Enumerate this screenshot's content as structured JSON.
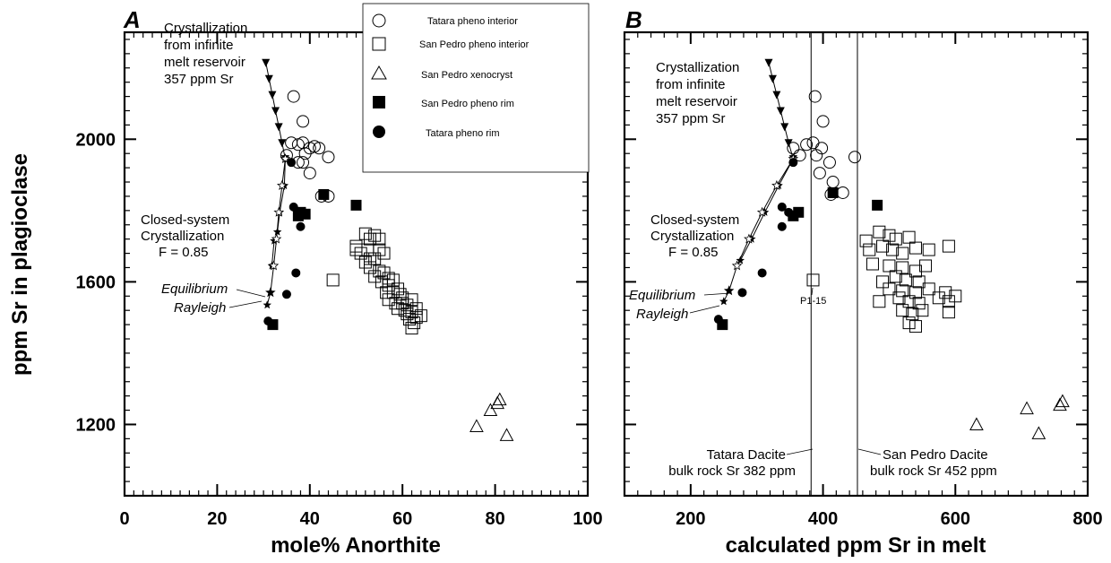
{
  "chart_data": [
    {
      "type": "scatter",
      "panel_label": "A",
      "xlabel": "mole% Anorthite",
      "ylabel": "ppm Sr  in plagioclase",
      "xlim": [
        0,
        100
      ],
      "ylim": [
        1000,
        2300
      ],
      "x_ticks": [
        0,
        20,
        40,
        60,
        80,
        100
      ],
      "y_ticks": [
        1200,
        1600,
        2000
      ],
      "grid": false,
      "legend": {
        "placement": "top-right",
        "entries": [
          {
            "label": "Tatara pheno interior",
            "marker": "open-circle"
          },
          {
            "label": "San Pedro pheno interior",
            "marker": "open-square"
          },
          {
            "label": "San Pedro xenocryst",
            "marker": "open-triangle"
          },
          {
            "label": "San Pedro pheno rim",
            "marker": "filled-square"
          },
          {
            "label": "Tatara pheno rim",
            "marker": "filled-circle"
          }
        ]
      },
      "series": [
        {
          "marker": "open-circle",
          "points": [
            [
              36.5,
              2120
            ],
            [
              38.5,
              2050
            ],
            [
              36,
              1990
            ],
            [
              37.5,
              1985
            ],
            [
              38.5,
              1990
            ],
            [
              40,
              1975
            ],
            [
              39,
              1960
            ],
            [
              41,
              1980
            ],
            [
              42,
              1975
            ],
            [
              35,
              1955
            ],
            [
              37.5,
              1935
            ],
            [
              44,
              1950
            ],
            [
              40,
              1905
            ],
            [
              38.5,
              1935
            ],
            [
              42.5,
              1840
            ],
            [
              44,
              1840
            ]
          ]
        },
        {
          "marker": "open-square",
          "points": [
            [
              45,
              1605
            ],
            [
              50,
              1700
            ],
            [
              52,
              1735
            ],
            [
              53,
              1720
            ],
            [
              54,
              1730
            ],
            [
              55,
              1720
            ],
            [
              50,
              1690
            ],
            [
              51,
              1680
            ],
            [
              52.5,
              1690
            ],
            [
              53,
              1665
            ],
            [
              54,
              1665
            ],
            [
              55,
              1690
            ],
            [
              56,
              1680
            ],
            [
              52,
              1655
            ],
            [
              53,
              1640
            ],
            [
              55,
              1630
            ],
            [
              56,
              1625
            ],
            [
              57,
              1610
            ],
            [
              54,
              1615
            ],
            [
              55.5,
              1600
            ],
            [
              57,
              1590
            ],
            [
              58,
              1605
            ],
            [
              59,
              1580
            ],
            [
              56.5,
              1570
            ],
            [
              58,
              1570
            ],
            [
              59.5,
              1565
            ],
            [
              60,
              1555
            ],
            [
              57,
              1550
            ],
            [
              58.5,
              1540
            ],
            [
              60,
              1540
            ],
            [
              61,
              1535
            ],
            [
              62,
              1550
            ],
            [
              59,
              1525
            ],
            [
              60.5,
              1520
            ],
            [
              61,
              1510
            ],
            [
              62,
              1515
            ],
            [
              63,
              1525
            ],
            [
              64,
              1505
            ],
            [
              61.5,
              1495
            ],
            [
              62.5,
              1485
            ],
            [
              63,
              1500
            ],
            [
              62,
              1470
            ]
          ]
        },
        {
          "marker": "open-triangle",
          "points": [
            [
              76,
              1195
            ],
            [
              79,
              1240
            ],
            [
              80.5,
              1260
            ],
            [
              81,
              1270
            ],
            [
              82.5,
              1170
            ]
          ]
        },
        {
          "marker": "filled-square",
          "points": [
            [
              43,
              1845
            ],
            [
              50,
              1815
            ],
            [
              39,
              1790
            ],
            [
              38,
              1795
            ],
            [
              37.5,
              1785
            ],
            [
              32,
              1480
            ]
          ]
        },
        {
          "marker": "filled-circle",
          "points": [
            [
              36,
              1935
            ],
            [
              36.5,
              1810
            ],
            [
              37.5,
              1790
            ],
            [
              38,
              1755
            ],
            [
              37,
              1625
            ],
            [
              35,
              1565
            ],
            [
              31,
              1490
            ]
          ]
        }
      ],
      "curves": [
        {
          "label": "Crystallization from infinite melt reservoir 357 ppm Sr",
          "marker": "filled-inverted-triangle",
          "points": [
            [
              30.5,
              2215
            ],
            [
              31.2,
              2170
            ],
            [
              31.9,
              2125
            ],
            [
              32.6,
              2080
            ],
            [
              33.3,
              2035
            ],
            [
              34,
              1990
            ],
            [
              34.7,
              1945
            ]
          ]
        },
        {
          "label": "Closed-system Crystallization F = 0.85",
          "marker": "filled-star",
          "points": [
            [
              34.7,
              1945
            ],
            [
              34.5,
              1870
            ],
            [
              33.5,
              1795
            ],
            [
              33,
              1740
            ],
            [
              32.3,
              1715
            ],
            [
              31.8,
              1645
            ]
          ]
        },
        {
          "label": "Equilibrium",
          "marker": "open-star",
          "points": [
            [
              34.7,
              1945
            ],
            [
              34,
              1870
            ],
            [
              33.3,
              1795
            ],
            [
              32.8,
              1720
            ],
            [
              32.2,
              1645
            ],
            [
              31.5,
              1570
            ]
          ]
        },
        {
          "label": "Rayleigh",
          "marker": "filled-star",
          "points": [
            [
              31.5,
              1570
            ],
            [
              30.8,
              1535
            ]
          ]
        }
      ],
      "annotations": [
        "Crystallization",
        "from infinite",
        "melt reservoir",
        "357 ppm Sr",
        "Closed-system",
        "Crystallization",
        "F = 0.85",
        "Equilibrium",
        "Rayleigh"
      ]
    },
    {
      "type": "scatter",
      "panel_label": "B",
      "xlabel": "calculated ppm Sr in melt",
      "ylabel": "",
      "xlim": [
        100,
        800
      ],
      "ylim": [
        1000,
        2300
      ],
      "x_ticks": [
        200,
        400,
        600,
        800
      ],
      "y_ticks": [
        1200,
        1600,
        2000
      ],
      "grid": false,
      "vertical_lines": [
        {
          "x": 382,
          "label_lines": [
            "Tatara Dacite",
            "bulk rock Sr 382 ppm"
          ]
        },
        {
          "x": 452,
          "label_lines": [
            "San Pedro Dacite",
            "bulk rock Sr 452 ppm"
          ]
        }
      ],
      "series": [
        {
          "marker": "open-circle",
          "points": [
            [
              388,
              2120
            ],
            [
              400,
              2050
            ],
            [
              355,
              1975
            ],
            [
              375,
              1985
            ],
            [
              385,
              1990
            ],
            [
              398,
              1975
            ],
            [
              365,
              1955
            ],
            [
              390,
              1955
            ],
            [
              410,
              1935
            ],
            [
              448,
              1950
            ],
            [
              395,
              1905
            ],
            [
              415,
              1880
            ],
            [
              430,
              1850
            ],
            [
              412,
              1845
            ]
          ]
        },
        {
          "marker": "open-square",
          "points": [
            [
              385,
              1605
            ],
            [
              465,
              1715
            ],
            [
              470,
              1690
            ],
            [
              485,
              1740
            ],
            [
              500,
              1730
            ],
            [
              510,
              1720
            ],
            [
              530,
              1725
            ],
            [
              490,
              1700
            ],
            [
              505,
              1690
            ],
            [
              520,
              1680
            ],
            [
              540,
              1695
            ],
            [
              560,
              1690
            ],
            [
              590,
              1700
            ],
            [
              475,
              1650
            ],
            [
              500,
              1645
            ],
            [
              520,
              1640
            ],
            [
              540,
              1630
            ],
            [
              555,
              1645
            ],
            [
              490,
              1600
            ],
            [
              510,
              1615
            ],
            [
              525,
              1605
            ],
            [
              545,
              1600
            ],
            [
              500,
              1580
            ],
            [
              520,
              1575
            ],
            [
              540,
              1570
            ],
            [
              560,
              1580
            ],
            [
              585,
              1570
            ],
            [
              600,
              1560
            ],
            [
              485,
              1545
            ],
            [
              515,
              1555
            ],
            [
              530,
              1545
            ],
            [
              545,
              1540
            ],
            [
              575,
              1555
            ],
            [
              590,
              1545
            ],
            [
              520,
              1520
            ],
            [
              535,
              1510
            ],
            [
              550,
              1520
            ],
            [
              590,
              1515
            ],
            [
              530,
              1485
            ],
            [
              540,
              1475
            ]
          ]
        },
        {
          "marker": "open-triangle",
          "points": [
            [
              632,
              1200
            ],
            [
              708,
              1245
            ],
            [
              726,
              1175
            ],
            [
              758,
              1255
            ],
            [
              762,
              1265
            ]
          ]
        },
        {
          "marker": "filled-square",
          "points": [
            [
              415,
              1850
            ],
            [
              482,
              1815
            ],
            [
              363,
              1795
            ],
            [
              355,
              1785
            ],
            [
              248,
              1480
            ]
          ]
        },
        {
          "marker": "filled-circle",
          "points": [
            [
              355,
              1935
            ],
            [
              338,
              1810
            ],
            [
              348,
              1795
            ],
            [
              338,
              1755
            ],
            [
              308,
              1625
            ],
            [
              278,
              1570
            ],
            [
              242,
              1495
            ]
          ]
        }
      ],
      "curves": [
        {
          "label": "Crystallization from infinite melt reservoir 357 ppm Sr",
          "marker": "filled-inverted-triangle",
          "points": [
            [
              318,
              2215
            ],
            [
              324,
              2170
            ],
            [
              330,
              2125
            ],
            [
              336,
              2080
            ],
            [
              342,
              2035
            ],
            [
              348,
              1990
            ],
            [
              355,
              1945
            ]
          ]
        },
        {
          "label": "Closed-system Crystallization F = 0.85",
          "marker": "filled-star",
          "points": [
            [
              355,
              1945
            ],
            [
              333,
              1870
            ],
            [
              312,
              1795
            ],
            [
              292,
              1720
            ],
            [
              275,
              1660
            ]
          ]
        },
        {
          "label": "Equilibrium",
          "marker": "open-star",
          "points": [
            [
              355,
              1945
            ],
            [
              330,
              1870
            ],
            [
              308,
              1795
            ],
            [
              288,
              1720
            ],
            [
              270,
              1645
            ],
            [
              258,
              1575
            ]
          ]
        },
        {
          "label": "Rayleigh",
          "marker": "filled-star",
          "points": [
            [
              258,
              1575
            ],
            [
              250,
              1545
            ]
          ]
        }
      ],
      "point_labels": [
        {
          "text": "P1-15",
          "x": 385,
          "y": 1605
        }
      ],
      "annotations": [
        "Crystallization",
        "from infinite",
        "melt reservoir",
        "357 ppm Sr",
        "Closed-system",
        "Crystallization",
        "F = 0.85",
        "Equilibrium",
        "Rayleigh"
      ]
    }
  ]
}
